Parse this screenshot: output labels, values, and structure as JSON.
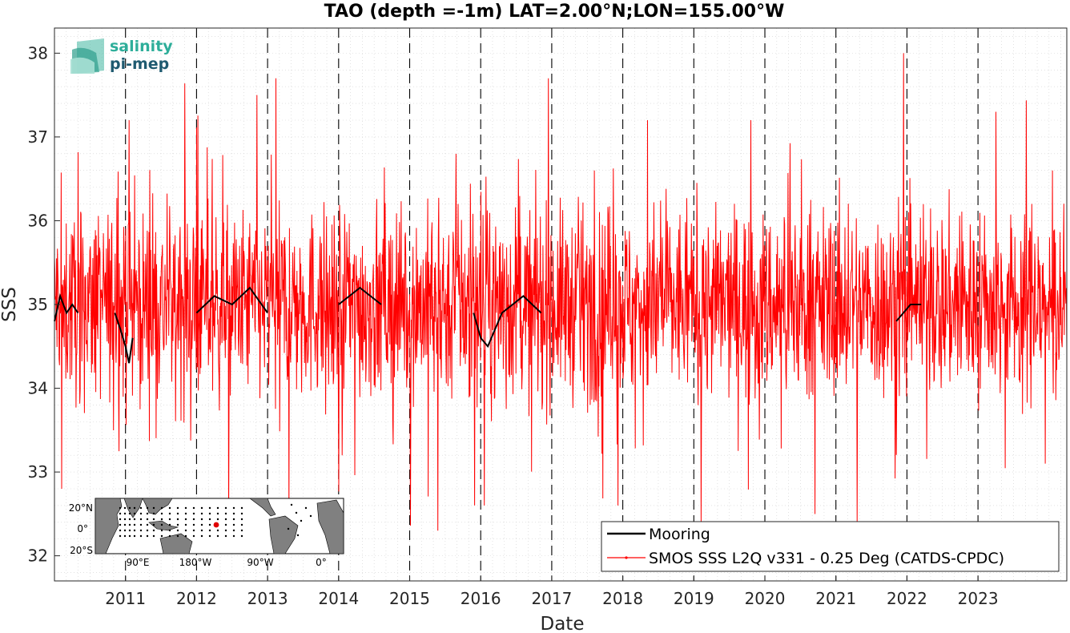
{
  "chart_data": {
    "type": "line",
    "title": "TAO (depth =-1m) LAT=2.00°N;LON=155.00°W",
    "xlabel": "Date",
    "ylabel": "SSS",
    "xlim": [
      2010.0,
      2024.25
    ],
    "ylim": [
      31.7,
      38.3
    ],
    "x_ticks": [
      "2011",
      "2012",
      "2013",
      "2014",
      "2015",
      "2016",
      "2017",
      "2018",
      "2019",
      "2020",
      "2021",
      "2022",
      "2023"
    ],
    "y_ticks": [
      "32",
      "33",
      "34",
      "35",
      "36",
      "37",
      "38"
    ],
    "grid": true,
    "legend_position": "bottom-right",
    "year_markers": [
      2011,
      2012,
      2013,
      2014,
      2015,
      2016,
      2017,
      2018,
      2019,
      2020,
      2021,
      2022,
      2023
    ],
    "series": [
      {
        "name": "Mooring",
        "color": "#000000",
        "segments": [
          {
            "x": [
              2010.0,
              2010.08,
              2010.17,
              2010.25,
              2010.33
            ],
            "y": [
              34.8,
              35.1,
              34.9,
              35.0,
              34.9
            ]
          },
          {
            "x": [
              2010.85,
              2010.93,
              2011.0,
              2011.05,
              2011.1
            ],
            "y": [
              34.9,
              34.7,
              34.5,
              34.3,
              34.6
            ]
          },
          {
            "x": [
              2012.0,
              2012.25,
              2012.5,
              2012.75,
              2013.0
            ],
            "y": [
              34.9,
              35.1,
              35.0,
              35.2,
              34.9
            ]
          },
          {
            "x": [
              2014.0,
              2014.3,
              2014.6
            ],
            "y": [
              35.0,
              35.2,
              35.0
            ]
          },
          {
            "x": [
              2015.9,
              2016.0,
              2016.1,
              2016.3,
              2016.6,
              2016.85
            ],
            "y": [
              34.9,
              34.6,
              34.5,
              34.9,
              35.1,
              34.9
            ]
          },
          {
            "x": [
              2021.85,
              2021.95,
              2022.05,
              2022.2
            ],
            "y": [
              34.8,
              34.9,
              35.0,
              35.0
            ]
          }
        ]
      },
      {
        "name": "SMOS SSS L2Q v331 - 0.25 Deg (CATDS-CPDC)",
        "color": "#ff0000",
        "mean": 35.0,
        "spread": 0.55,
        "x_range": [
          2010.0,
          2024.25
        ],
        "spikes": [
          {
            "x": 2010.1,
            "y": 32.8
          },
          {
            "x": 2011.05,
            "y": 37.2
          },
          {
            "x": 2012.45,
            "y": 32.3
          },
          {
            "x": 2012.85,
            "y": 37.5
          },
          {
            "x": 2013.12,
            "y": 37.7
          },
          {
            "x": 2013.3,
            "y": 32.4
          },
          {
            "x": 2014.05,
            "y": 33.2
          },
          {
            "x": 2015.4,
            "y": 32.3
          },
          {
            "x": 2016.05,
            "y": 32.6
          },
          {
            "x": 2016.95,
            "y": 37.7
          },
          {
            "x": 2017.6,
            "y": 36.6
          },
          {
            "x": 2017.93,
            "y": 32.6
          },
          {
            "x": 2018.35,
            "y": 37.2
          },
          {
            "x": 2019.1,
            "y": 32.4
          },
          {
            "x": 2019.8,
            "y": 37.2
          },
          {
            "x": 2021.3,
            "y": 32.4
          },
          {
            "x": 2021.95,
            "y": 38.0
          },
          {
            "x": 2023.25,
            "y": 37.3
          },
          {
            "x": 2024.05,
            "y": 36.6
          },
          {
            "x": 2023.95,
            "y": 33.1
          }
        ]
      }
    ]
  },
  "legend": {
    "mooring_label": "Mooring",
    "smos_label": "SMOS SSS L2Q v331 - 0.25 Deg (CATDS-CPDC)"
  },
  "logo": {
    "line1": "salinity",
    "line2": "pi-mep"
  },
  "inset_map": {
    "lat_labels": [
      "20°N",
      "0°",
      "20°S"
    ],
    "lon_labels": [
      "90°E",
      "180°W",
      "90°W",
      "0°"
    ],
    "station_color": "#ff0000",
    "land_color": "#808080"
  }
}
